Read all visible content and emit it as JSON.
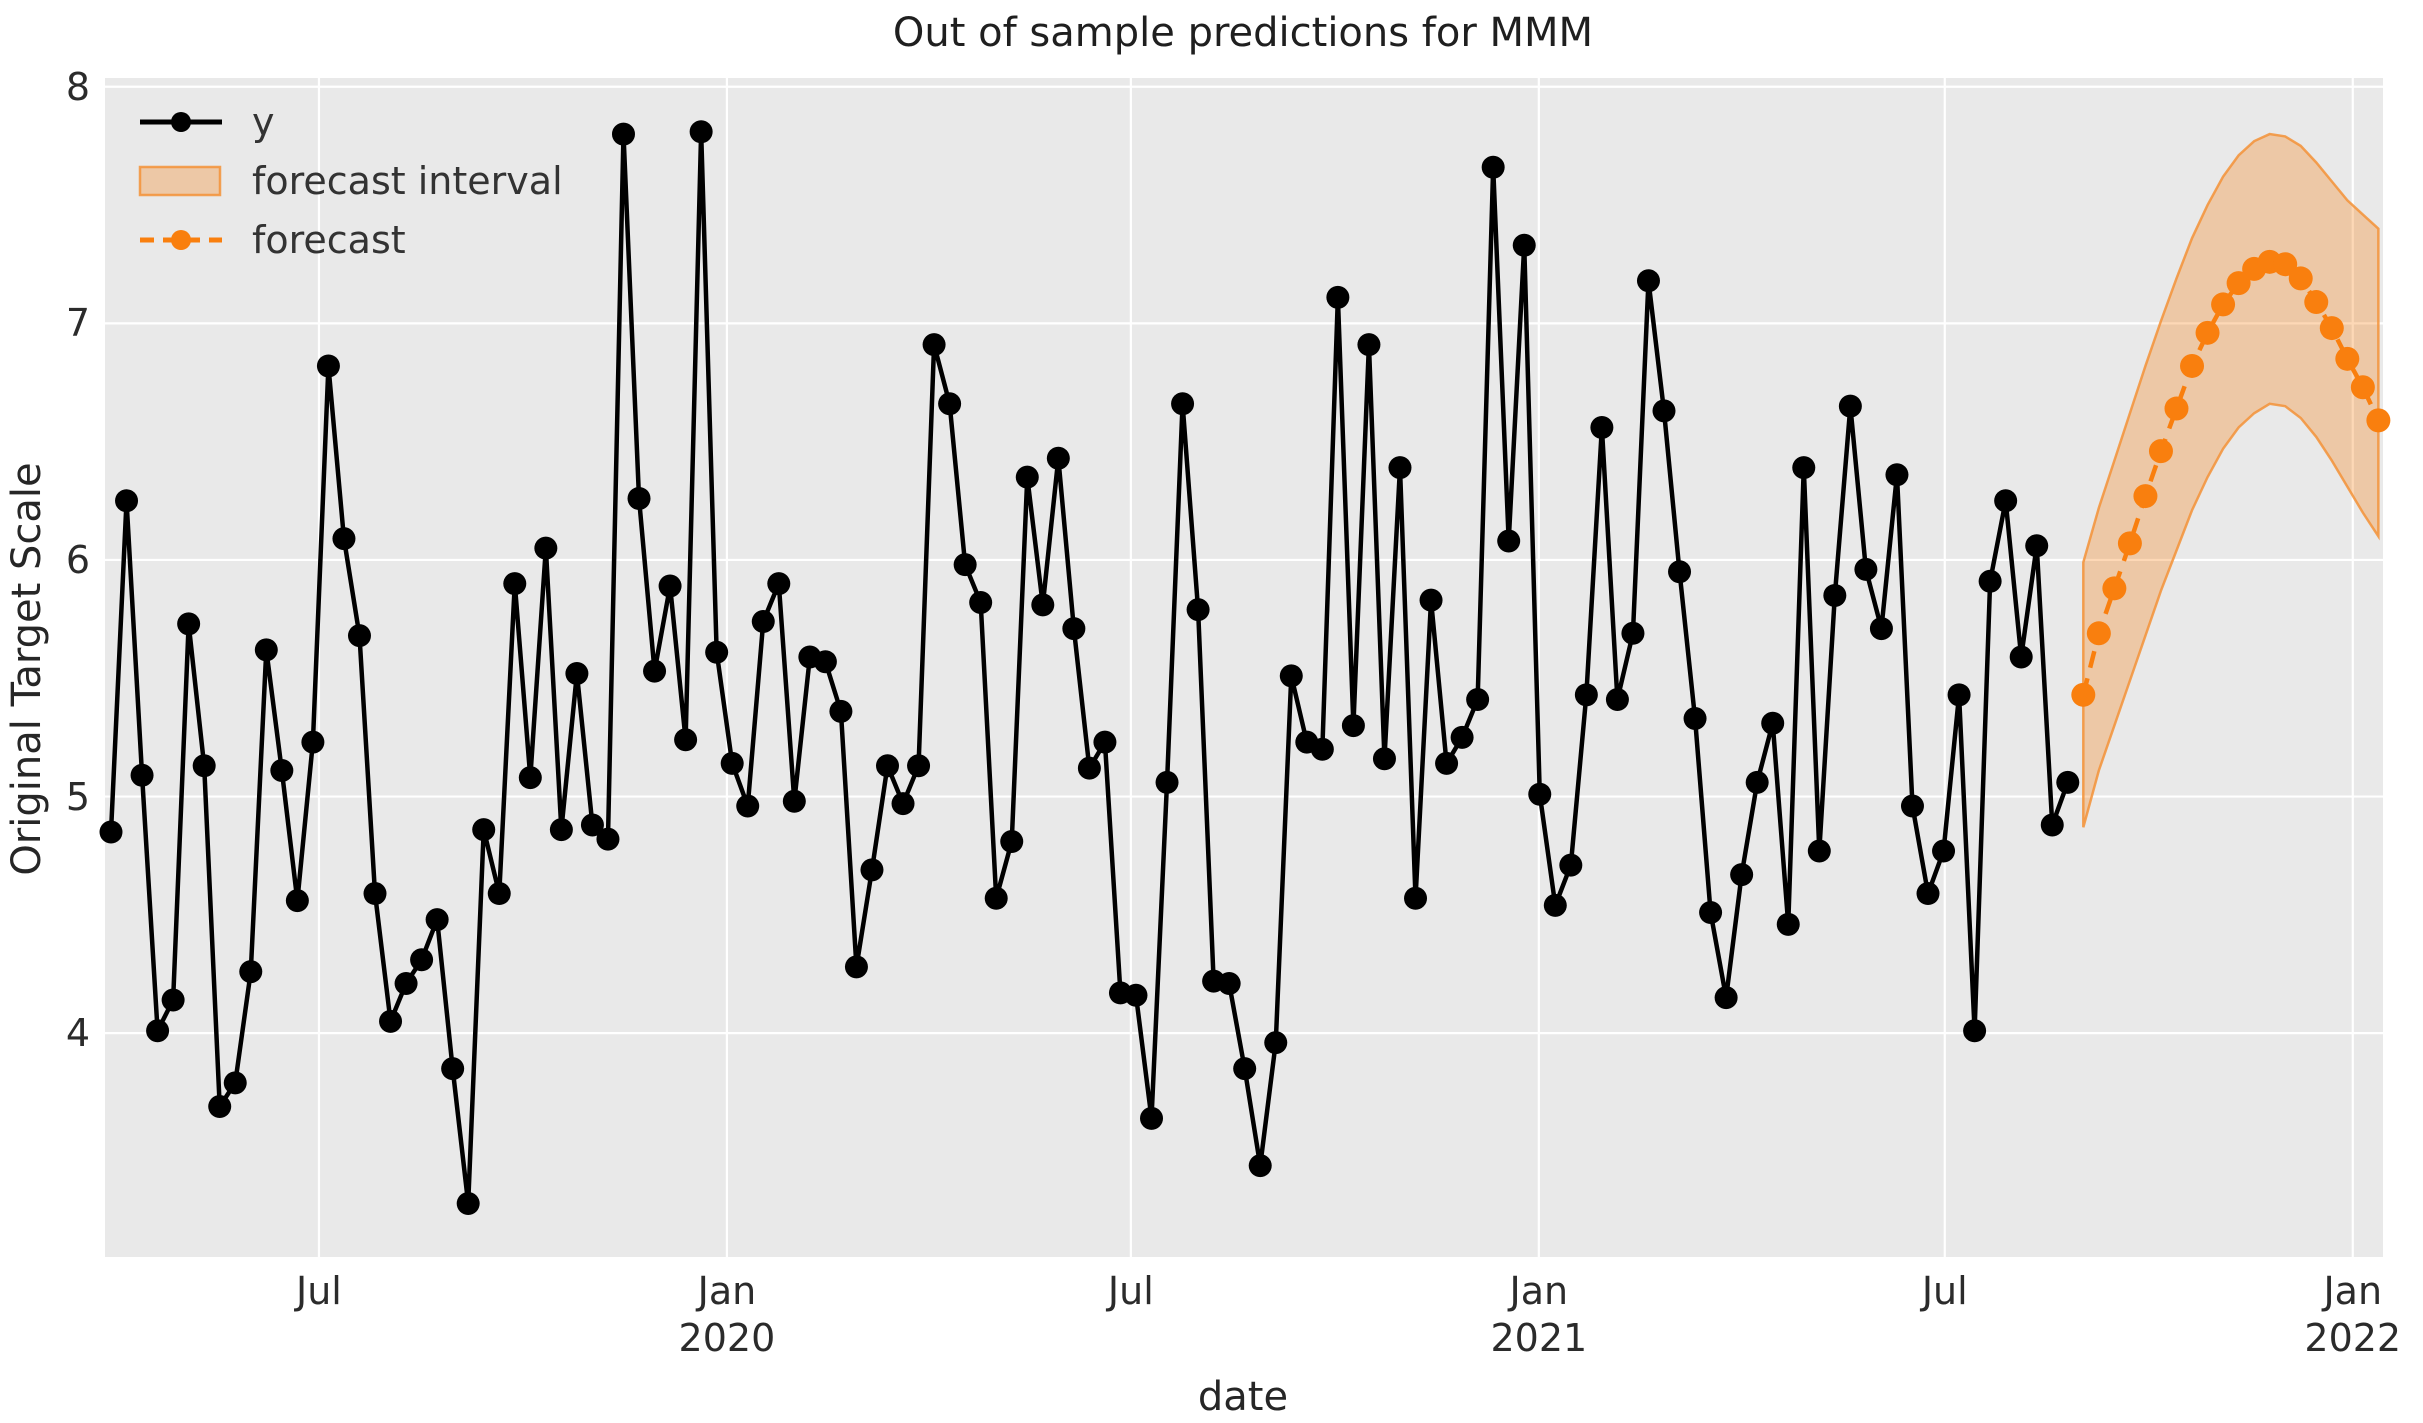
{
  "title": "Out of sample predictions for MMM",
  "axes": {
    "x_label": "date",
    "y_label": "Original Target Scale",
    "y_ticks": [
      {
        "value": 4,
        "label": "4"
      },
      {
        "value": 5,
        "label": "5"
      },
      {
        "value": 6,
        "label": "6"
      },
      {
        "value": 7,
        "label": "7"
      },
      {
        "value": 8,
        "label": "8"
      }
    ],
    "x_ticks": [
      {
        "week": 13.39,
        "label": "Jul",
        "year": ""
      },
      {
        "week": 39.66,
        "label": "Jan",
        "year": "2020"
      },
      {
        "week": 65.67,
        "label": "Jul",
        "year": ""
      },
      {
        "week": 91.94,
        "label": "Jan",
        "year": "2021"
      },
      {
        "week": 118.08,
        "label": "Jul",
        "year": ""
      },
      {
        "week": 144.35,
        "label": "Jan",
        "year": "2022"
      }
    ]
  },
  "legend": {
    "items": [
      {
        "label": "y",
        "type": "line-marker"
      },
      {
        "label": "forecast interval",
        "type": "patch"
      },
      {
        "label": "forecast",
        "type": "dashed-line-marker"
      }
    ]
  },
  "colors": {
    "series_y": "#000000",
    "series_forecast": "#f97f0e",
    "band_fill": "rgba(249,127,14,0.30)",
    "band_edge": "rgba(243,146,55,0.85)",
    "plot_bg": "#e9e9e9",
    "grid": "#ffffff",
    "text": "#262626",
    "tick_text": "#2b2b2b"
  },
  "chart_data": {
    "type": "line",
    "title": "Out of sample predictions for MMM",
    "xlabel": "date",
    "ylabel": "Original Target Scale",
    "x_unit": "weekly index (week 0 = first observation, ~Apr 2019)",
    "xlim_weeks": [
      -0.52,
      146.33
    ],
    "ylim": [
      3.05,
      8.04
    ],
    "grid": true,
    "legend_position": "upper-left",
    "series": [
      {
        "name": "y",
        "style": "solid-marker",
        "x_start_week": 0,
        "values": [
          4.85,
          6.25,
          5.09,
          4.01,
          4.14,
          5.73,
          5.13,
          3.69,
          3.79,
          4.26,
          5.62,
          5.11,
          4.56,
          5.23,
          6.82,
          6.09,
          5.68,
          4.59,
          4.05,
          4.21,
          4.31,
          4.48,
          3.85,
          3.28,
          4.86,
          4.59,
          5.9,
          5.08,
          6.05,
          4.86,
          5.52,
          4.88,
          4.82,
          7.8,
          6.26,
          5.53,
          5.89,
          5.24,
          7.81,
          5.61,
          5.14,
          4.96,
          5.74,
          5.9,
          4.98,
          5.59,
          5.57,
          5.36,
          4.28,
          4.69,
          5.13,
          4.97,
          5.13,
          6.91,
          6.66,
          5.98,
          5.82,
          4.57,
          4.81,
          6.35,
          5.81,
          6.43,
          5.71,
          5.12,
          5.23,
          4.17,
          4.16,
          3.64,
          5.06,
          6.66,
          5.79,
          4.22,
          4.21,
          3.85,
          3.44,
          3.96,
          5.51,
          5.23,
          5.2,
          7.11,
          5.3,
          6.91,
          5.16,
          6.39,
          4.57,
          5.83,
          5.14,
          5.25,
          5.41,
          7.66,
          6.08,
          7.33,
          5.01,
          4.54,
          4.71,
          5.43,
          6.56,
          5.41,
          5.69,
          7.18,
          6.63,
          5.95,
          5.33,
          4.51,
          4.15,
          4.67,
          5.06,
          5.31,
          4.46,
          6.39,
          4.77,
          5.85,
          6.65,
          5.96,
          5.71,
          6.36,
          4.96,
          4.59,
          4.77,
          5.43,
          4.01,
          5.91,
          6.25,
          5.59,
          6.06,
          4.88,
          5.06
        ]
      },
      {
        "name": "forecast",
        "style": "dashed-marker",
        "x_start_week": 127,
        "values": [
          5.43,
          5.69,
          5.88,
          6.07,
          6.27,
          6.46,
          6.64,
          6.82,
          6.96,
          7.08,
          7.17,
          7.23,
          7.26,
          7.25,
          7.19,
          7.09,
          6.98,
          6.85,
          6.73,
          6.59
        ]
      },
      {
        "name": "forecast interval",
        "style": "band",
        "x_start_week": 127,
        "lower": [
          4.87,
          5.11,
          5.3,
          5.49,
          5.68,
          5.87,
          6.04,
          6.21,
          6.35,
          6.47,
          6.56,
          6.62,
          6.66,
          6.65,
          6.6,
          6.52,
          6.42,
          6.31,
          6.2,
          6.1
        ],
        "upper": [
          5.99,
          6.22,
          6.42,
          6.62,
          6.82,
          7.01,
          7.19,
          7.36,
          7.5,
          7.62,
          7.71,
          7.77,
          7.8,
          7.79,
          7.75,
          7.68,
          7.6,
          7.52,
          7.46,
          7.4
        ]
      }
    ]
  }
}
